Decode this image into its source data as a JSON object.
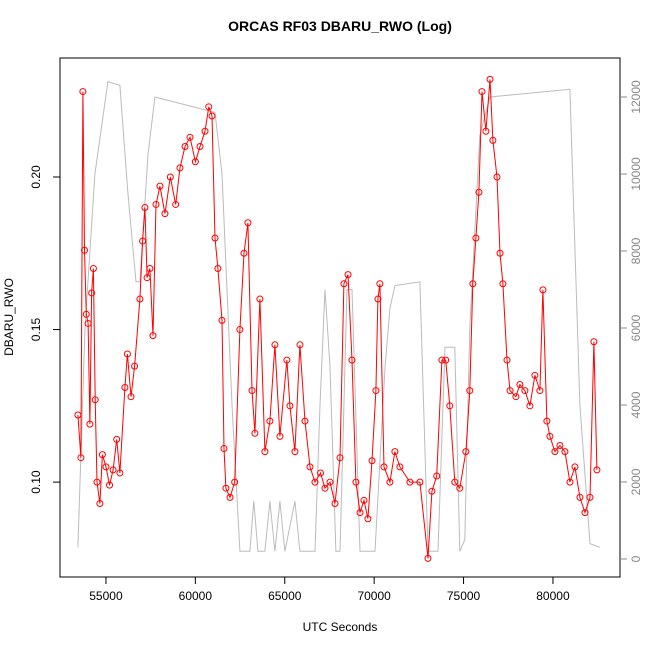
{
  "chart_data": {
    "type": "line",
    "title": "ORCAS RF03 DBARU_RWO (Log)",
    "x_label": "UTC Seconds",
    "y_label": "DBARU_RWO",
    "xlim": [
      52430,
      83750
    ],
    "xticks": [
      55000,
      60000,
      65000,
      70000,
      75000,
      80000
    ],
    "ylim": [
      0.0689,
      0.239
    ],
    "yticks": [
      {
        "value": 0.1,
        "label": "0.10"
      },
      {
        "value": 0.15,
        "label": "0.15"
      },
      {
        "value": 0.2,
        "label": "0.20"
      }
    ],
    "y2lim": [
      -468,
      13013
    ],
    "y2ticks": [
      0,
      2000,
      4000,
      6000,
      8000,
      10000,
      12000
    ],
    "series": [
      {
        "color": "#bbbbbb",
        "axis": "y2",
        "markers": false,
        "x": [
          53430,
          53830,
          54380,
          55110,
          55780,
          56230,
          56680,
          56900,
          57350,
          57740,
          61100,
          61490,
          62050,
          62490,
          63050,
          63270,
          63500,
          63890,
          64170,
          64450,
          64730,
          65010,
          65570,
          65850,
          66690,
          66970,
          67250,
          67530,
          67860,
          68090,
          68480,
          68760,
          69210,
          70050,
          70610,
          70880,
          71160,
          72560,
          73010,
          73570,
          73960,
          74510,
          74790,
          75070,
          75350,
          75910,
          76480,
          80950,
          81510,
          82070,
          82620
        ],
        "values": [
          300,
          6000,
          10000,
          12400,
          12300,
          9500,
          7200,
          7200,
          10500,
          12000,
          11600,
          10000,
          4000,
          200,
          200,
          1500,
          200,
          200,
          1500,
          200,
          1500,
          200,
          1500,
          200,
          200,
          4000,
          7000,
          5000,
          200,
          200,
          7000,
          7000,
          200,
          200,
          5000,
          6500,
          7100,
          7200,
          200,
          200,
          5500,
          5500,
          200,
          500,
          6000,
          11000,
          12000,
          12200,
          4000,
          400,
          300
        ]
      },
      {
        "color": "#ff0000",
        "axis": "y",
        "markers": true,
        "x": [
          53430,
          53600,
          53710,
          53800,
          53900,
          54000,
          54100,
          54200,
          54300,
          54400,
          54500,
          54660,
          54800,
          55000,
          55200,
          55400,
          55600,
          55780,
          56060,
          56200,
          56400,
          56600,
          56900,
          57050,
          57180,
          57300,
          57460,
          57630,
          57800,
          58020,
          58300,
          58600,
          58900,
          59140,
          59420,
          59700,
          60000,
          60260,
          60540,
          60750,
          60930,
          61100,
          61260,
          61490,
          61600,
          61710,
          61940,
          62200,
          62490,
          62720,
          62940,
          63170,
          63330,
          63610,
          63890,
          64170,
          64450,
          64730,
          65120,
          65290,
          65570,
          65850,
          66130,
          66410,
          66690,
          67000,
          67250,
          67530,
          67810,
          68090,
          68310,
          68540,
          68760,
          68980,
          69210,
          69430,
          69650,
          69880,
          70100,
          70210,
          70320,
          70550,
          70880,
          71160,
          71440,
          72000,
          72560,
          73010,
          73230,
          73500,
          73790,
          74000,
          74230,
          74510,
          74790,
          75130,
          75350,
          75520,
          75690,
          75860,
          76030,
          76250,
          76480,
          76640,
          76870,
          77040,
          77200,
          77430,
          77600,
          77930,
          78150,
          78430,
          78710,
          78990,
          79270,
          79440,
          79660,
          79830,
          80110,
          80390,
          80670,
          80950,
          81230,
          81510,
          81790,
          82070,
          82290,
          82460
        ],
        "values": [
          0.122,
          0.108,
          0.228,
          0.176,
          0.155,
          0.152,
          0.119,
          0.162,
          0.17,
          0.127,
          0.1,
          0.093,
          0.109,
          0.105,
          0.099,
          0.104,
          0.114,
          0.103,
          0.131,
          0.142,
          0.128,
          0.138,
          0.16,
          0.179,
          0.19,
          0.167,
          0.17,
          0.148,
          0.191,
          0.197,
          0.188,
          0.2,
          0.191,
          0.203,
          0.21,
          0.213,
          0.205,
          0.21,
          0.215,
          0.223,
          0.22,
          0.18,
          0.17,
          0.153,
          0.111,
          0.098,
          0.095,
          0.1,
          0.15,
          0.175,
          0.185,
          0.13,
          0.116,
          0.16,
          0.11,
          0.12,
          0.145,
          0.115,
          0.14,
          0.125,
          0.11,
          0.145,
          0.12,
          0.105,
          0.1,
          0.103,
          0.098,
          0.1,
          0.093,
          0.108,
          0.165,
          0.168,
          0.14,
          0.1,
          0.09,
          0.094,
          0.088,
          0.107,
          0.13,
          0.16,
          0.165,
          0.105,
          0.1,
          0.11,
          0.105,
          0.1,
          0.1,
          0.075,
          0.097,
          0.102,
          0.14,
          0.14,
          0.125,
          0.1,
          0.098,
          0.11,
          0.13,
          0.165,
          0.18,
          0.195,
          0.228,
          0.215,
          0.232,
          0.212,
          0.2,
          0.175,
          0.165,
          0.14,
          0.13,
          0.128,
          0.132,
          0.13,
          0.125,
          0.135,
          0.13,
          0.163,
          0.12,
          0.115,
          0.11,
          0.112,
          0.11,
          0.1,
          0.105,
          0.095,
          0.09,
          0.095,
          0.146,
          0.104
        ]
      }
    ]
  }
}
